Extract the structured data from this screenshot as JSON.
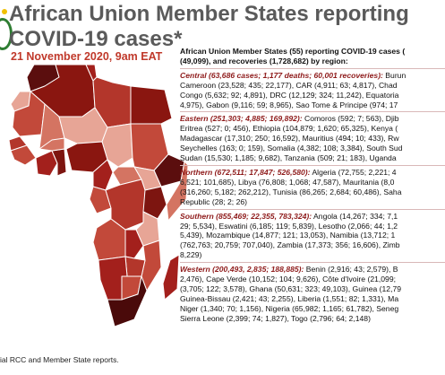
{
  "title_line1": "African Union Member States reporting",
  "title_line2": "COVID-19 cases*",
  "date": "21 November 2020, 9am EAT",
  "source": "ial RCC and Member State reports.",
  "intro": [
    "African Union Member States (55) reporting COVID-19 cases (",
    "(49,099), and recoveries (1,728,682) by region:"
  ],
  "regions": [
    {
      "name": "Central (63,686 cases; 1,177 deaths; 60,001 recoveries):",
      "lines": [
        " Burun",
        "Cameroon (23,528; 435; 22,177), CAR (4,911; 63; 4,817), Chad",
        "Congo (5,632; 92; 4,891), DRC (12,129; 324; 11,242), Equatoria",
        "4,975), Gabon (9,116; 59; 8,965), Sao Tome & Principe (974; 17"
      ]
    },
    {
      "name": "Eastern (251,303; 4,885; 169,892):",
      "lines": [
        " Comoros (592; 7; 563), Djib",
        "Eritrea (527; 0; 456), Ethiopia (104,879; 1,620; 65,325), Kenya (",
        "Madagascar (17,310; 250; 16,592), Mauritius (494; 10; 433), Rw",
        "Seychelles (163; 0; 159), Somalia (4,382; 108; 3,384), South Sud",
        "Sudan (15,530; 1,185; 9,682), Tanzania (509; 21; 183), Uganda"
      ]
    },
    {
      "name": "Northern (672,511; 17,847; 526,580):",
      "lines": [
        " Algeria (72,755; 2,221; 4",
        "6,521; 101,685), Libya (76,808; 1,068; 47,587), Mauritania (8,0",
        "(316,260; 5,182; 262,212), Tunisia (86,265; 2,684; 60,486), Saha",
        "Republic (28; 2; 26)"
      ]
    },
    {
      "name": "Southern (855,469; 22,355, 783,324):",
      "lines": [
        " Angola (14,267; 334; 7,1",
        "29; 5,534), Eswatini (6,185; 119; 5,839), Lesotho (2,066; 44; 1,2",
        "5,439), Mozambique (14,877; 121; 13,053), Namibia (13,712; 1",
        "(762,763; 20,759; 707,040), Zambia (17,373; 356; 16,606), Zimb",
        "8,229)"
      ]
    },
    {
      "name": "Western (200,493, 2,835; 188,885):",
      "lines": [
        " Benin (2,916; 43; 2,579), B",
        "2,476), Cape Verde (10,152; 104; 9,626), Côte d'Ivoire (21,099;",
        "(3,705; 122; 3,578), Ghana (50,631; 323; 49,103), Guinea (12,79",
        "Guinea-Bissau (2,421; 43; 2,255), Liberia (1,551; 82; 1,331), Ma",
        "Niger (1,340; 70; 1,156), Nigeria (65,982; 1,165; 61,782), Seneg",
        "Sierra Leone (2,399; 74; 1,827), Togo (2,796; 64; 2,148)"
      ]
    }
  ],
  "colors": {
    "title": "#5a5a5a",
    "date": "#c0392b",
    "region": "#8e1a1a",
    "map_dark": "#4a0a0a",
    "map_mid": "#a3201c",
    "map_light": "#e89a88"
  }
}
